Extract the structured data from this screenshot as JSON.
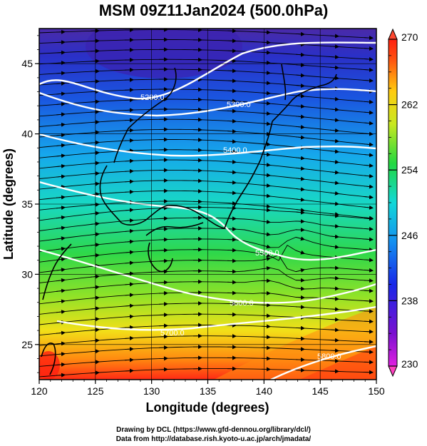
{
  "title": "MSM 09Z11Jan2024 (500.0hPa)",
  "map": {
    "xlabel": "Longitude (degrees)",
    "ylabel": "Latitude  (degrees)",
    "lon_range": [
      120,
      150
    ],
    "lat_range": [
      22.5,
      47.5
    ],
    "lon_ticks": [
      "120",
      "125",
      "130",
      "135",
      "140",
      "145",
      "150"
    ],
    "lat_ticks": [
      "25",
      "30",
      "35",
      "40",
      "45"
    ],
    "contour_labels": [
      "5200.0",
      "5300.0",
      "5400.0",
      "5500.0",
      "5600.0",
      "5700.0",
      "5800.0"
    ],
    "colorbar": {
      "min": 230,
      "max": 270,
      "ticks": [
        "270",
        "262",
        "254",
        "246",
        "238",
        "230"
      ]
    }
  },
  "credits": {
    "line1": "Drawing by DCL (https://www.gfd-dennou.org/library/dcl/)",
    "line2": "Data from http://database.rish.kyoto-u.ac.jp/arch/jmadata/"
  }
}
